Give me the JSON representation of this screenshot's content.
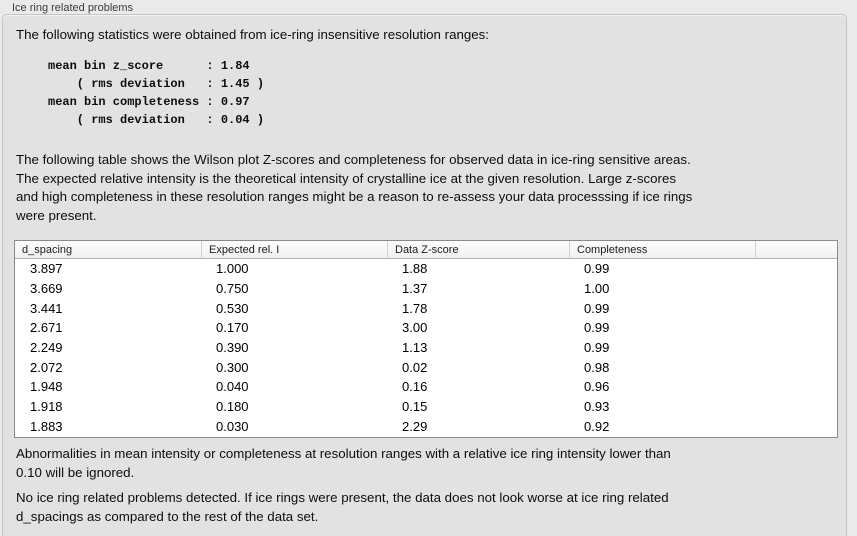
{
  "panel": {
    "title": "Ice ring related problems"
  },
  "intro": {
    "text": "The following statistics were obtained from ice-ring insensitive resolution ranges:"
  },
  "stats_block": {
    "lines": [
      "mean bin z_score      : 1.84",
      "    ( rms deviation   : 1.45 )",
      "mean bin completeness : 0.97",
      "    ( rms deviation   : 0.04 )"
    ]
  },
  "description": {
    "text": "The following table shows the Wilson plot Z-scores and completeness for observed data in ice-ring sensitive areas.\nThe expected relative intensity is the theoretical intensity of crystalline ice at the given resolution. Large z-scores\nand high completeness in these resolution ranges might be a reason to re-assess your data processsing if ice rings\nwere present."
  },
  "table": {
    "columns": [
      "d_spacing",
      "Expected rel. I",
      "Data Z-score",
      "Completeness"
    ],
    "rows": [
      [
        "3.897",
        "1.000",
        "1.88",
        "0.99"
      ],
      [
        "3.669",
        "0.750",
        "1.37",
        "1.00"
      ],
      [
        "3.441",
        "0.530",
        "1.78",
        "0.99"
      ],
      [
        "2.671",
        "0.170",
        "3.00",
        "0.99"
      ],
      [
        "2.249",
        "0.390",
        "1.13",
        "0.99"
      ],
      [
        "2.072",
        "0.300",
        "0.02",
        "0.98"
      ],
      [
        "1.948",
        "0.040",
        "0.16",
        "0.96"
      ],
      [
        "1.918",
        "0.180",
        "0.15",
        "0.93"
      ],
      [
        "1.883",
        "0.030",
        "2.29",
        "0.92"
      ]
    ]
  },
  "notes": {
    "ignore_note": "Abnormalities in mean intensity or completeness at resolution ranges with a relative ice ring intensity lower than\n0.10 will be ignored.",
    "conclusion": "No ice ring related problems detected. If ice rings were present, the data does not look worse at ice ring related\nd_spacings as compared to the rest of the data set."
  },
  "colors": {
    "page_bg": "#eaeaea",
    "panel_bg": "#e2e2e2",
    "panel_border": "#c3c3c3",
    "table_border": "#8a8a8a",
    "table_header_bg": "#f4f4f4",
    "text": "#0d0d0d"
  }
}
